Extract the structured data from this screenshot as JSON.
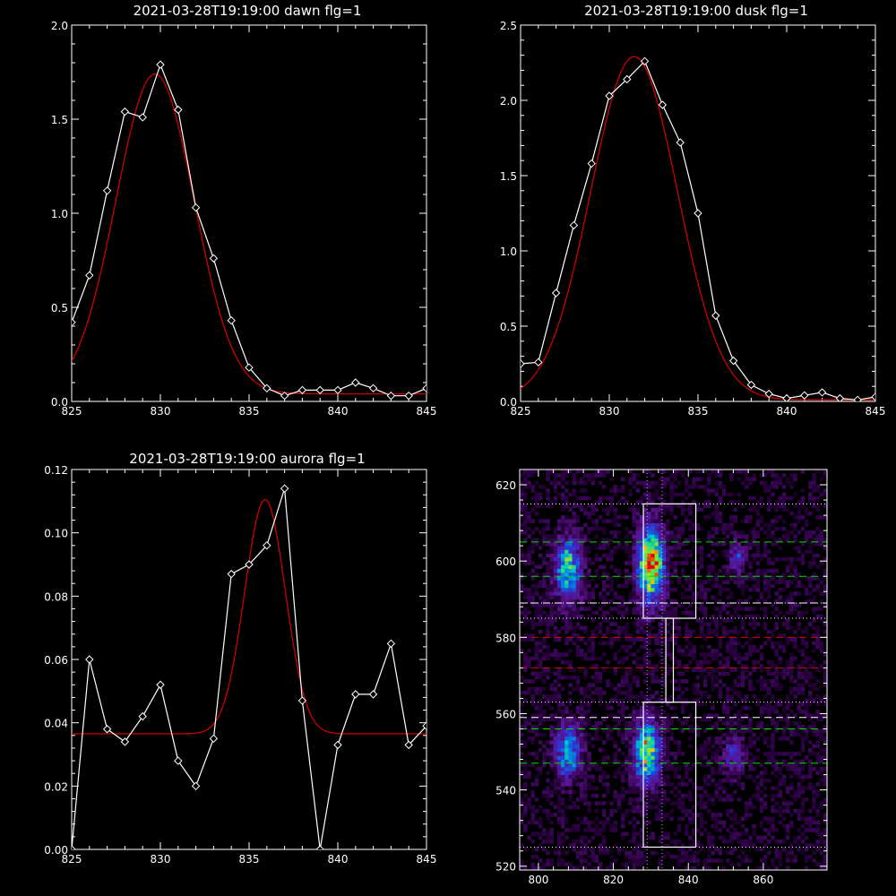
{
  "chart_data": [
    {
      "type": "line",
      "title": "2021-03-28T19:19:00 dawn flg=1",
      "xlim": [
        825,
        845
      ],
      "ylim": [
        0,
        2.0
      ],
      "xticks": [
        825,
        830,
        835,
        840,
        845
      ],
      "yticks": [
        0.0,
        0.5,
        1.0,
        1.5,
        2.0
      ],
      "ytick_labels": [
        "0.0",
        "0.5",
        "1.0",
        "1.5",
        "2.0"
      ],
      "series": [
        {
          "color": "#ffffff",
          "marker": "diamond",
          "x": [
            825,
            826,
            827,
            828,
            829,
            830,
            831,
            832,
            833,
            834,
            835,
            836,
            837,
            838,
            839,
            840,
            841,
            842,
            843,
            844,
            845
          ],
          "y": [
            0.42,
            0.67,
            1.12,
            1.54,
            1.51,
            1.79,
            1.55,
            1.03,
            0.76,
            0.43,
            0.18,
            0.07,
            0.03,
            0.06,
            0.06,
            0.06,
            0.1,
            0.07,
            0.03,
            0.03,
            0.07
          ]
        },
        {
          "color": "#cc0000",
          "fit": {
            "amplitude": 1.7,
            "center": 829.7,
            "sigma": 2.2,
            "baseline": 0.04
          },
          "x": [
            825,
            845
          ]
        }
      ]
    },
    {
      "type": "line",
      "title": "2021-03-28T19:19:00 dusk flg=1",
      "xlim": [
        825,
        845
      ],
      "ylim": [
        0,
        2.5
      ],
      "xticks": [
        825,
        830,
        835,
        840,
        845
      ],
      "yticks": [
        0.0,
        0.5,
        1.0,
        1.5,
        2.0,
        2.5
      ],
      "ytick_labels": [
        "0.0",
        "0.5",
        "1.0",
        "1.5",
        "2.0",
        "2.5"
      ],
      "series": [
        {
          "color": "#ffffff",
          "marker": "diamond",
          "x": [
            825,
            826,
            827,
            828,
            829,
            830,
            831,
            832,
            833,
            834,
            835,
            836,
            837,
            838,
            839,
            840,
            841,
            842,
            843,
            844,
            845
          ],
          "y": [
            0.25,
            0.26,
            0.72,
            1.17,
            1.58,
            2.03,
            2.14,
            2.26,
            1.97,
            1.72,
            1.25,
            0.57,
            0.27,
            0.11,
            0.05,
            0.02,
            0.04,
            0.06,
            0.02,
            0.01,
            0.03
          ]
        },
        {
          "color": "#cc0000",
          "fit": {
            "amplitude": 2.28,
            "center": 831.4,
            "sigma": 2.45,
            "baseline": 0.01
          },
          "x": [
            825,
            845
          ]
        }
      ]
    },
    {
      "type": "line",
      "title": "2021-03-28T19:19:00 aurora flg=1",
      "xlim": [
        825,
        845
      ],
      "ylim": [
        0,
        0.12
      ],
      "xticks": [
        825,
        830,
        835,
        840,
        845
      ],
      "yticks": [
        0.0,
        0.02,
        0.04,
        0.06,
        0.08,
        0.1,
        0.12
      ],
      "ytick_labels": [
        "0.00",
        "0.02",
        "0.04",
        "0.06",
        "0.08",
        "0.10",
        "0.12"
      ],
      "series": [
        {
          "color": "#ffffff",
          "marker": "diamond",
          "x": [
            825,
            826,
            827,
            828,
            829,
            830,
            831,
            832,
            833,
            834,
            835,
            836,
            837,
            838,
            839,
            840,
            841,
            842,
            843,
            844,
            845
          ],
          "y": [
            0.0,
            0.06,
            0.038,
            0.034,
            0.042,
            0.052,
            0.028,
            0.02,
            0.035,
            0.087,
            0.09,
            0.096,
            0.114,
            0.047,
            0.0,
            0.033,
            0.049,
            0.049,
            0.065,
            0.033,
            0.039
          ]
        },
        {
          "color": "#cc0000",
          "fit": {
            "amplitude": 0.074,
            "center": 835.9,
            "sigma": 1.15,
            "baseline": 0.0365
          },
          "x": [
            825,
            845
          ]
        }
      ]
    },
    {
      "type": "heatmap",
      "title": "",
      "xlim": [
        795,
        877
      ],
      "ylim": [
        519,
        624
      ],
      "xticks": [
        800,
        820,
        840,
        860
      ],
      "yticks": [
        520,
        540,
        560,
        580,
        600,
        620
      ],
      "colormap": "rainbow",
      "blobs": [
        {
          "x": 808,
          "y": 598,
          "sx": 2.5,
          "sy": 6,
          "amp": 0.62
        },
        {
          "x": 830,
          "y": 599,
          "sx": 2.5,
          "sy": 7,
          "amp": 0.95
        },
        {
          "x": 853,
          "y": 601,
          "sx": 1.5,
          "sy": 3,
          "amp": 0.32
        },
        {
          "x": 808,
          "y": 550,
          "sx": 2.5,
          "sy": 5,
          "amp": 0.55
        },
        {
          "x": 829,
          "y": 550,
          "sx": 2.5,
          "sy": 6,
          "amp": 0.72
        },
        {
          "x": 852,
          "y": 549,
          "sx": 2,
          "sy": 4,
          "amp": 0.3
        }
      ],
      "boxes": [
        {
          "x": [
            828,
            842
          ],
          "y": [
            585,
            615
          ]
        },
        {
          "x": [
            828,
            842
          ],
          "y": [
            525,
            563
          ]
        },
        {
          "x": [
            834,
            836
          ],
          "y": [
            563,
            585
          ]
        }
      ],
      "dotted_h": [
        615,
        589,
        585,
        563,
        525
      ],
      "dotted_v": [
        829,
        833
      ],
      "dashed_green": [
        605,
        596,
        556,
        547
      ],
      "dashed_white": [
        589,
        559
      ],
      "dashed_red": [
        580,
        572
      ],
      "dotted_colors": {
        "white": "#ffffff",
        "violet": "#b8a0ff",
        "green": "#00dd00",
        "red": "#dd0000"
      }
    }
  ]
}
